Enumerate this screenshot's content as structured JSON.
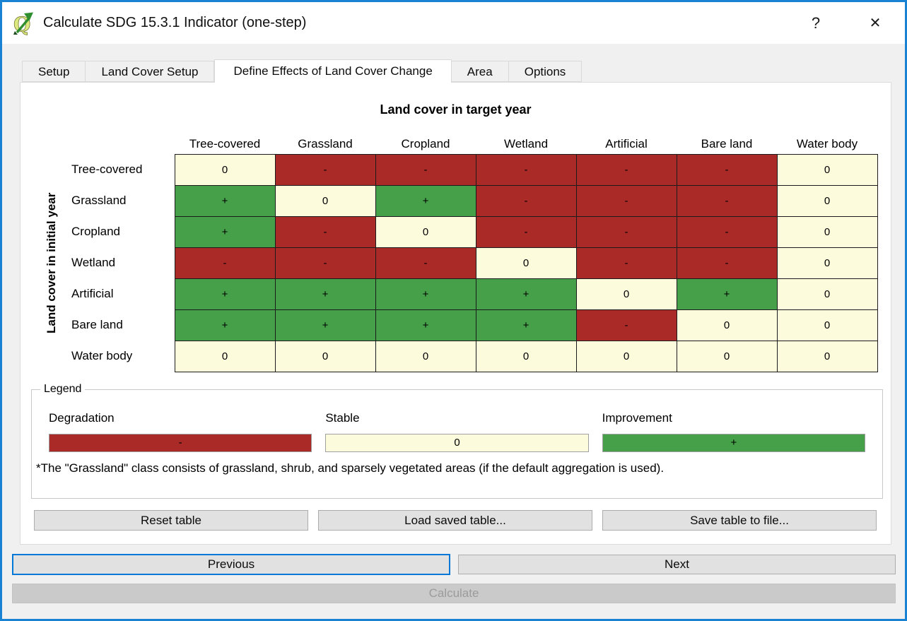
{
  "window": {
    "title": "Calculate SDG 15.3.1 Indicator (one-step)",
    "help_label": "?",
    "close_label": "✕"
  },
  "tabs": [
    {
      "label": "Setup",
      "active": false
    },
    {
      "label": "Land Cover Setup",
      "active": false
    },
    {
      "label": "Define Effects of Land Cover Change",
      "active": true
    },
    {
      "label": "Area",
      "active": false
    },
    {
      "label": "Options",
      "active": false
    }
  ],
  "colors": {
    "degradation": "#aa2a27",
    "stable": "#fcfbdc",
    "improvement": "#45a049",
    "window_border": "#1a82d2",
    "focus_border": "#0078d7"
  },
  "matrix": {
    "target_axis_label": "Land cover in target year",
    "initial_axis_label": "Land cover in initial year",
    "columns": [
      "Tree-covered",
      "Grassland",
      "Cropland",
      "Wetland",
      "Artificial",
      "Bare land",
      "Water body"
    ],
    "rows": [
      "Tree-covered",
      "Grassland",
      "Cropland",
      "Wetland",
      "Artificial",
      "Bare land",
      "Water body"
    ],
    "cells": [
      [
        "0",
        "-",
        "-",
        "-",
        "-",
        "-",
        "0"
      ],
      [
        "+",
        "0",
        "+",
        "-",
        "-",
        "-",
        "0"
      ],
      [
        "+",
        "-",
        "0",
        "-",
        "-",
        "-",
        "0"
      ],
      [
        "-",
        "-",
        "-",
        "0",
        "-",
        "-",
        "0"
      ],
      [
        "+",
        "+",
        "+",
        "+",
        "0",
        "+",
        "0"
      ],
      [
        "+",
        "+",
        "+",
        "+",
        "-",
        "0",
        "0"
      ],
      [
        "0",
        "0",
        "0",
        "0",
        "0",
        "0",
        "0"
      ]
    ]
  },
  "legend": {
    "title": "Legend",
    "entries": [
      {
        "label": "Degradation",
        "symbol": "-",
        "color_key": "degradation"
      },
      {
        "label": "Stable",
        "symbol": "0",
        "color_key": "stable"
      },
      {
        "label": "Improvement",
        "symbol": "+",
        "color_key": "improvement"
      }
    ],
    "footnote": "*The \"Grassland\" class consists of grassland, shrub, and sparsely vegetated areas (if the default aggregation is used)."
  },
  "table_buttons": [
    {
      "name": "reset-table-button",
      "label": "Reset table"
    },
    {
      "name": "load-saved-table-button",
      "label": "Load saved table..."
    },
    {
      "name": "save-table-to-file-button",
      "label": "Save table to file..."
    }
  ],
  "nav": {
    "previous_label": "Previous",
    "next_label": "Next",
    "calculate_label": "Calculate"
  }
}
